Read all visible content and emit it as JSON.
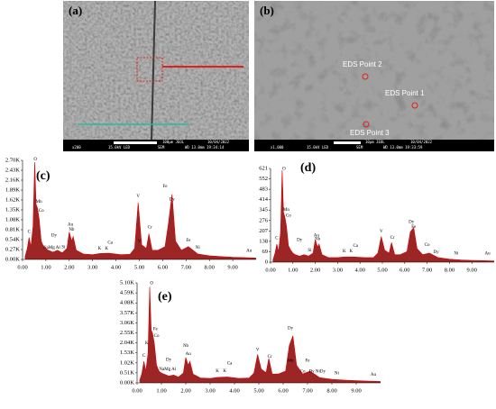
{
  "images": [
    {
      "label": "(a)",
      "info": [
        "x200",
        "15.0kV LED",
        "SEM",
        "WD 13.0mm 19:34:14",
        "100µm JEOL",
        "10/04/2022"
      ]
    },
    {
      "label": "(b)",
      "info": [
        "x1,000",
        "15.0kV LED",
        "SEM",
        "WD 13.0mm 19:33:59",
        "10µm JEOL",
        "10/04/2022"
      ],
      "points": [
        "EDS Point 2",
        "EDS Point 1",
        "EDS Point 3"
      ]
    }
  ],
  "chart_data": [
    {
      "type": "area",
      "label": "(c)",
      "color": "#8b0000",
      "xlim": [
        0,
        10
      ],
      "ylim": [
        0,
        2700
      ],
      "xticks": [
        {
          "value": 0,
          "label": "0.00"
        },
        {
          "value": 1,
          "label": "1.00"
        },
        {
          "value": 2,
          "label": "2.00"
        },
        {
          "value": 3,
          "label": "3.00"
        },
        {
          "value": 4,
          "label": "4.00"
        },
        {
          "value": 5,
          "label": "5.00"
        },
        {
          "value": 6,
          "label": "6.00"
        },
        {
          "value": 7,
          "label": "7.00"
        },
        {
          "value": 8,
          "label": "8.00"
        },
        {
          "value": 9,
          "label": "9.00"
        }
      ],
      "yticks": [
        {
          "value": 0,
          "label": "0.00K"
        },
        {
          "value": 270,
          "label": "0.27K"
        },
        {
          "value": 540,
          "label": "0.54K"
        },
        {
          "value": 810,
          "label": "0.81K"
        },
        {
          "value": 1080,
          "label": "1.08K"
        },
        {
          "value": 1350,
          "label": "1.35K"
        },
        {
          "value": 1620,
          "label": "1.62K"
        },
        {
          "value": 1890,
          "label": "1.89K"
        },
        {
          "value": 2160,
          "label": "2.16K"
        },
        {
          "value": 2430,
          "label": "2.43K"
        },
        {
          "value": 2700,
          "label": "2.70K"
        }
      ],
      "x": [
        0.1,
        0.2,
        0.28,
        0.36,
        0.45,
        0.52,
        0.58,
        0.64,
        0.71,
        0.8,
        0.9,
        1.0,
        1.1,
        1.3,
        1.5,
        1.7,
        1.9,
        2.0,
        2.1,
        2.17,
        2.3,
        2.6,
        3.0,
        3.3,
        3.7,
        4.2,
        4.6,
        4.8,
        4.95,
        5.1,
        5.3,
        5.41,
        5.55,
        5.8,
        6.1,
        6.25,
        6.4,
        6.55,
        6.8,
        7.1,
        7.5,
        8.0,
        8.5,
        9.0,
        9.5,
        10.0
      ],
      "values": [
        50,
        300,
        600,
        350,
        900,
        2650,
        1500,
        1400,
        1100,
        500,
        350,
        300,
        250,
        200,
        250,
        180,
        300,
        750,
        500,
        620,
        250,
        150,
        130,
        160,
        170,
        130,
        140,
        300,
        1550,
        400,
        300,
        700,
        250,
        250,
        350,
        1000,
        1780,
        500,
        250,
        350,
        150,
        100,
        80,
        60,
        50,
        40
      ],
      "annotations": [
        {
          "text": "O",
          "x": 0.55,
          "y": 2650
        },
        {
          "text": "Mn",
          "x": 0.7,
          "y": 1500
        },
        {
          "text": "Co",
          "x": 0.8,
          "y": 1250
        },
        {
          "text": "C",
          "x": 0.28,
          "y": 680
        },
        {
          "text": "Dy",
          "x": 1.35,
          "y": 580
        },
        {
          "text": "NaMg Al",
          "x": 1.25,
          "y": 250
        },
        {
          "text": "Si",
          "x": 1.75,
          "y": 260
        },
        {
          "text": "Au",
          "x": 2.05,
          "y": 880
        },
        {
          "text": "Nb",
          "x": 2.1,
          "y": 740
        },
        {
          "text": "K",
          "x": 3.3,
          "y": 220
        },
        {
          "text": "K",
          "x": 3.6,
          "y": 220
        },
        {
          "text": "Ca",
          "x": 3.75,
          "y": 380
        },
        {
          "text": "V",
          "x": 4.95,
          "y": 1650
        },
        {
          "text": "Cr",
          "x": 5.45,
          "y": 800
        },
        {
          "text": "V",
          "x": 5.0,
          "y": 420
        },
        {
          "text": "Fe",
          "x": 6.1,
          "y": 1920
        },
        {
          "text": "Dy",
          "x": 6.4,
          "y": 1560
        },
        {
          "text": "Fe",
          "x": 7.1,
          "y": 450
        },
        {
          "text": "Ni",
          "x": 7.5,
          "y": 250
        },
        {
          "text": "Au",
          "x": 9.7,
          "y": 160
        }
      ]
    },
    {
      "type": "area",
      "label": "(d)",
      "color": "#8b0000",
      "xlim": [
        0,
        10
      ],
      "ylim": [
        0,
        621
      ],
      "xticks": [
        {
          "value": 0,
          "label": "0.00"
        },
        {
          "value": 1,
          "label": "1.00"
        },
        {
          "value": 2,
          "label": "2.00"
        },
        {
          "value": 3,
          "label": "3.00"
        },
        {
          "value": 4,
          "label": "4.00"
        },
        {
          "value": 5,
          "label": "5.00"
        },
        {
          "value": 6,
          "label": "6.00"
        },
        {
          "value": 7,
          "label": "7.00"
        },
        {
          "value": 8,
          "label": "8.00"
        },
        {
          "value": 9,
          "label": "9.00"
        }
      ],
      "yticks": [
        0,
        69,
        138,
        207,
        276,
        345,
        414,
        483,
        552,
        621
      ],
      "x": [
        0.1,
        0.2,
        0.28,
        0.36,
        0.45,
        0.52,
        0.58,
        0.64,
        0.71,
        0.8,
        0.9,
        1.0,
        1.1,
        1.3,
        1.5,
        1.7,
        1.9,
        2.0,
        2.1,
        2.17,
        2.3,
        2.6,
        3.0,
        3.3,
        3.7,
        4.2,
        4.6,
        4.8,
        4.95,
        5.1,
        5.3,
        5.41,
        5.55,
        5.8,
        6.1,
        6.25,
        6.4,
        6.55,
        6.8,
        7.1,
        7.5,
        8.0,
        8.5,
        9.0,
        9.5,
        10.0
      ],
      "values": [
        10,
        60,
        120,
        70,
        200,
        610,
        330,
        300,
        240,
        110,
        80,
        60,
        50,
        40,
        50,
        40,
        60,
        150,
        100,
        120,
        50,
        30,
        30,
        35,
        35,
        30,
        30,
        60,
        170,
        80,
        60,
        130,
        50,
        50,
        70,
        200,
        230,
        90,
        50,
        60,
        30,
        20,
        15,
        12,
        10,
        8
      ],
      "annotations": [
        {
          "text": "O",
          "x": 0.6,
          "y": 600
        },
        {
          "text": "Mn",
          "x": 0.7,
          "y": 330
        },
        {
          "text": "Co",
          "x": 0.8,
          "y": 290
        },
        {
          "text": "C",
          "x": 0.28,
          "y": 140
        },
        {
          "text": "Dy",
          "x": 1.3,
          "y": 130
        },
        {
          "text": "Au",
          "x": 2.05,
          "y": 160
        },
        {
          "text": "Nb",
          "x": 2.1,
          "y": 135
        },
        {
          "text": "Si",
          "x": 1.75,
          "y": 60
        },
        {
          "text": "K",
          "x": 3.3,
          "y": 55
        },
        {
          "text": "K",
          "x": 3.6,
          "y": 55
        },
        {
          "text": "Ca",
          "x": 3.8,
          "y": 90
        },
        {
          "text": "V",
          "x": 4.95,
          "y": 185
        },
        {
          "text": "Cr",
          "x": 5.45,
          "y": 145
        },
        {
          "text": "Dy",
          "x": 6.3,
          "y": 250
        },
        {
          "text": "Fe",
          "x": 6.4,
          "y": 215
        },
        {
          "text": "Co",
          "x": 7.0,
          "y": 95
        },
        {
          "text": "Dy",
          "x": 7.4,
          "y": 50
        },
        {
          "text": "Ni",
          "x": 8.3,
          "y": 40
        },
        {
          "text": "Au",
          "x": 9.7,
          "y": 40
        }
      ]
    },
    {
      "type": "area",
      "label": "(e)",
      "color": "#8b0000",
      "xlim": [
        0,
        10
      ],
      "ylim": [
        0,
        5100
      ],
      "xticks": [
        {
          "value": 0,
          "label": "0.00"
        },
        {
          "value": 1,
          "label": "1.00"
        },
        {
          "value": 2,
          "label": "2.00"
        },
        {
          "value": 3,
          "label": "3.00"
        },
        {
          "value": 4,
          "label": "4.00"
        },
        {
          "value": 5,
          "label": "5.00"
        },
        {
          "value": 6,
          "label": "6.00"
        },
        {
          "value": 7,
          "label": "7.00"
        },
        {
          "value": 8,
          "label": "8.00"
        },
        {
          "value": 9,
          "label": "9.00"
        }
      ],
      "yticks": [
        {
          "value": 0,
          "label": "0.00K"
        },
        {
          "value": 510,
          "label": "0.51K"
        },
        {
          "value": 1020,
          "label": "1.02K"
        },
        {
          "value": 1530,
          "label": "1.53K"
        },
        {
          "value": 2040,
          "label": "2.04K"
        },
        {
          "value": 2550,
          "label": "2.55K"
        },
        {
          "value": 3060,
          "label": "3.06K"
        },
        {
          "value": 3570,
          "label": "3.57K"
        },
        {
          "value": 4080,
          "label": "4.08K"
        },
        {
          "value": 4590,
          "label": "4.59K"
        },
        {
          "value": 5100,
          "label": "5.10K"
        }
      ],
      "x": [
        0.1,
        0.2,
        0.28,
        0.36,
        0.45,
        0.52,
        0.58,
        0.64,
        0.71,
        0.8,
        0.9,
        1.0,
        1.1,
        1.3,
        1.5,
        1.7,
        1.9,
        2.0,
        2.1,
        2.17,
        2.3,
        2.6,
        3.0,
        3.3,
        3.7,
        4.2,
        4.6,
        4.8,
        4.95,
        5.1,
        5.3,
        5.41,
        5.55,
        5.8,
        6.1,
        6.25,
        6.4,
        6.55,
        6.8,
        7.1,
        7.5,
        8.0,
        8.5,
        9.0,
        9.5,
        10.0
      ],
      "values": [
        100,
        500,
        1100,
        600,
        1500,
        4900,
        2700,
        2500,
        2000,
        900,
        600,
        500,
        450,
        350,
        400,
        300,
        500,
        1300,
        900,
        1100,
        450,
        250,
        230,
        280,
        300,
        230,
        250,
        500,
        1450,
        700,
        520,
        1250,
        450,
        450,
        600,
        1900,
        2400,
        900,
        450,
        600,
        270,
        180,
        140,
        110,
        90,
        70
      ],
      "annotations": [
        {
          "text": "O",
          "x": 0.6,
          "y": 4950
        },
        {
          "text": "Fe",
          "x": 0.75,
          "y": 2600
        },
        {
          "text": "Co",
          "x": 0.8,
          "y": 2250
        },
        {
          "text": "C",
          "x": 0.28,
          "y": 1250
        },
        {
          "text": "K",
          "x": 0.4,
          "y": 1900
        },
        {
          "text": "Dy",
          "x": 1.3,
          "y": 1050
        },
        {
          "text": "NaMg Al",
          "x": 1.25,
          "y": 550
        },
        {
          "text": "Nb",
          "x": 2.0,
          "y": 1750
        },
        {
          "text": "Au",
          "x": 2.1,
          "y": 1350
        },
        {
          "text": "K",
          "x": 3.3,
          "y": 470
        },
        {
          "text": "K",
          "x": 3.6,
          "y": 470
        },
        {
          "text": "Ca",
          "x": 3.8,
          "y": 850
        },
        {
          "text": "V",
          "x": 4.95,
          "y": 1550
        },
        {
          "text": "Cr",
          "x": 5.45,
          "y": 1200
        },
        {
          "text": "Dy",
          "x": 6.3,
          "y": 2650
        },
        {
          "text": "Mn",
          "x": 6.3,
          "y": 1000
        },
        {
          "text": "Fe",
          "x": 7.0,
          "y": 1000
        },
        {
          "text": "Co",
          "x": 6.8,
          "y": 450
        },
        {
          "text": "Dy NiDy",
          "x": 7.4,
          "y": 450
        },
        {
          "text": "Ni",
          "x": 8.2,
          "y": 350
        },
        {
          "text": "Au",
          "x": 9.7,
          "y": 280
        }
      ]
    }
  ]
}
